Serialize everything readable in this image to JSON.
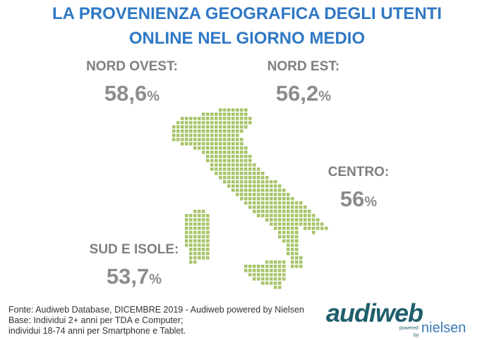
{
  "header": {
    "title": [
      "LA PROVENIENZA GEOGRAFICA DEGLI UTENTI",
      "ONLINE NEL GIORNO MEDIO"
    ]
  },
  "regions": [
    {
      "name": "NORD OVEST:",
      "value": "58,6",
      "unit": "%"
    },
    {
      "name": "NORD EST:",
      "value": "56,2",
      "unit": "%"
    },
    {
      "name": "CENTRO:",
      "value": "56",
      "unit": "%"
    },
    {
      "name": "SUD E ISOLE:",
      "value": "53,7",
      "unit": "%"
    }
  ],
  "footer": {
    "lines": [
      "Fonte: Audiweb Database, DICEMBRE 2019 - Audiweb powered by Nielsen",
      "Base: Individui 2+ anni per TDA e Computer;",
      "individui 18-74 anni per Smartphone e Tablet."
    ]
  },
  "logo": {
    "brand": "audiweb",
    "powered": "powered",
    "by": "by",
    "partner": "nielsen"
  }
}
